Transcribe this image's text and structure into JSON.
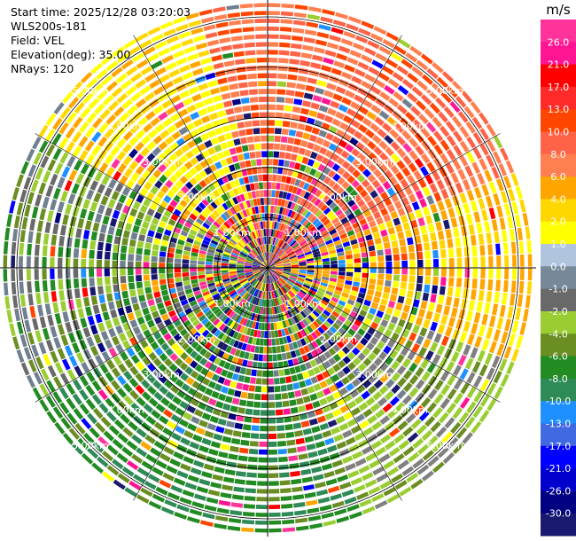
{
  "header": {
    "start_time": "Start time: 2025/12/28 03:20:03",
    "instrument": "WLS200s-181",
    "field": "Field: VEL",
    "elevation": "Elevation(deg): 35.00",
    "nrays": "NRays: 120"
  },
  "colorbar": {
    "unit": "m/s",
    "labels": [
      "26.0",
      "21.0",
      "17.0",
      "13.0",
      "10.0",
      "8.0",
      "6.0",
      "4.0",
      "2.0",
      "1.0",
      "0.0",
      "-1.0",
      "-2.0",
      "-4.0",
      "-6.0",
      "-8.0",
      "-10.0",
      "-13.0",
      "-17.0",
      "-21.0",
      "-26.0",
      "-30.0"
    ],
    "colors": [
      "#ff3399",
      "#ff1493",
      "#ff0000",
      "#ff2b2b",
      "#ff4500",
      "#ff6347",
      "#ff7f50",
      "#ffa500",
      "#ffd700",
      "#ffff00",
      "#b0c4de",
      "#778899",
      "#696969",
      "#9acd32",
      "#6b8e23",
      "#228b22",
      "#2e8b57",
      "#1e90ff",
      "#4169e1",
      "#0000ff",
      "#0000cd",
      "#000080",
      "#191970"
    ]
  },
  "chart_data": {
    "type": "heatmap",
    "projection": "polar PPI",
    "field": "VEL",
    "unit": "m/s",
    "nrays": 120,
    "range_rings_km": [
      1.0,
      2.0,
      3.0,
      4.0,
      5.0
    ],
    "ring_labels": [
      "1.00km",
      "2.00km",
      "3.00km",
      "4.00km",
      "5.00km"
    ],
    "sector_structure": [
      {
        "sector": "north-northwest",
        "dominant": "positive 4-8 m/s",
        "colors": "yellow, orange"
      },
      {
        "sector": "north-northeast to east",
        "dominant": "positive 8-17 m/s",
        "colors": "salmon, red-orange"
      },
      {
        "sector": "east",
        "dominant": "positive 2-6 m/s",
        "colors": "yellow, orange"
      },
      {
        "sector": "southeast",
        "dominant": "negative -2 to -6 m/s",
        "colors": "yellow-green, olive"
      },
      {
        "sector": "south to southwest",
        "dominant": "negative -4 to -8 m/s",
        "colors": "green"
      },
      {
        "sector": "west",
        "dominant": "negative -1 to -4 m/s",
        "colors": "green, slate gray"
      },
      {
        "sector": "inner 3 km",
        "dominant": "noisy mixed",
        "colors": "all"
      }
    ]
  }
}
